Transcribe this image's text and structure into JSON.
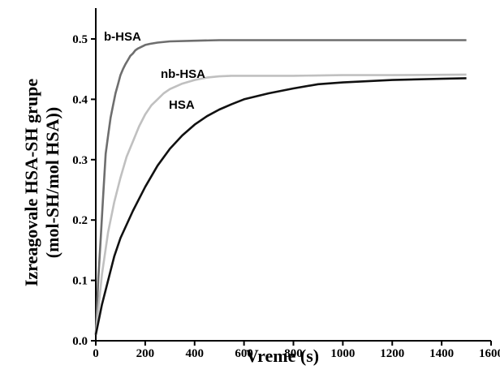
{
  "chart_data": {
    "type": "line",
    "xlabel": "Vreme (s)",
    "ylabel_line1": "Izreagovale HSA-SH grupe",
    "ylabel_line2": "(mol-SH/mol HSA))",
    "xlim": [
      0,
      1600
    ],
    "ylim": [
      0,
      0.5
    ],
    "x_ticks": [
      0,
      200,
      400,
      600,
      800,
      1000,
      1200,
      1400,
      1600
    ],
    "x_tick_labels": [
      "0",
      "200",
      "400",
      "600",
      "800",
      "1000",
      "1200",
      "1400",
      "1600"
    ],
    "y_ticks": [
      0.0,
      0.1,
      0.2,
      0.3,
      0.4,
      0.5
    ],
    "y_tick_labels": [
      "0.0",
      "0.1",
      "0.2",
      "0.3",
      "0.4",
      "0.5"
    ],
    "grid": false,
    "series": [
      {
        "name": "b-HSA",
        "color": "#6e6e6e",
        "x": [
          0,
          10,
          20,
          30,
          40,
          50,
          60,
          70,
          80,
          90,
          100,
          110,
          120,
          130,
          140,
          150,
          160,
          170,
          180,
          200,
          220,
          250,
          300,
          400,
          500,
          600,
          800,
          1000,
          1200,
          1500
        ],
        "y": [
          0.01,
          0.1,
          0.17,
          0.24,
          0.31,
          0.34,
          0.37,
          0.39,
          0.41,
          0.425,
          0.44,
          0.45,
          0.458,
          0.465,
          0.472,
          0.476,
          0.481,
          0.484,
          0.486,
          0.49,
          0.492,
          0.494,
          0.496,
          0.497,
          0.498,
          0.498,
          0.498,
          0.498,
          0.498,
          0.498
        ]
      },
      {
        "name": "nb-HSA",
        "color": "#c0c0c0",
        "x": [
          0,
          25,
          50,
          75,
          100,
          125,
          150,
          175,
          200,
          225,
          250,
          275,
          300,
          350,
          400,
          450,
          500,
          550,
          600,
          800,
          1000,
          1200,
          1500
        ],
        "y": [
          0.01,
          0.11,
          0.18,
          0.23,
          0.27,
          0.305,
          0.33,
          0.355,
          0.375,
          0.39,
          0.4,
          0.41,
          0.417,
          0.426,
          0.432,
          0.436,
          0.438,
          0.439,
          0.439,
          0.439,
          0.44,
          0.44,
          0.441
        ]
      },
      {
        "name": "HSA",
        "color": "#111111",
        "x": [
          0,
          25,
          50,
          75,
          100,
          150,
          200,
          250,
          300,
          350,
          400,
          450,
          500,
          550,
          600,
          700,
          800,
          900,
          1000,
          1100,
          1200,
          1300,
          1400,
          1500
        ],
        "y": [
          0.01,
          0.06,
          0.1,
          0.14,
          0.17,
          0.215,
          0.255,
          0.29,
          0.318,
          0.34,
          0.358,
          0.372,
          0.383,
          0.392,
          0.4,
          0.41,
          0.418,
          0.425,
          0.428,
          0.43,
          0.432,
          0.433,
          0.434,
          0.435
        ]
      }
    ],
    "annotations": [
      {
        "text": "b-HSA",
        "series": "b-HSA"
      },
      {
        "text": "nb-HSA",
        "series": "nb-HSA"
      },
      {
        "text": "HSA",
        "series": "HSA"
      }
    ]
  }
}
